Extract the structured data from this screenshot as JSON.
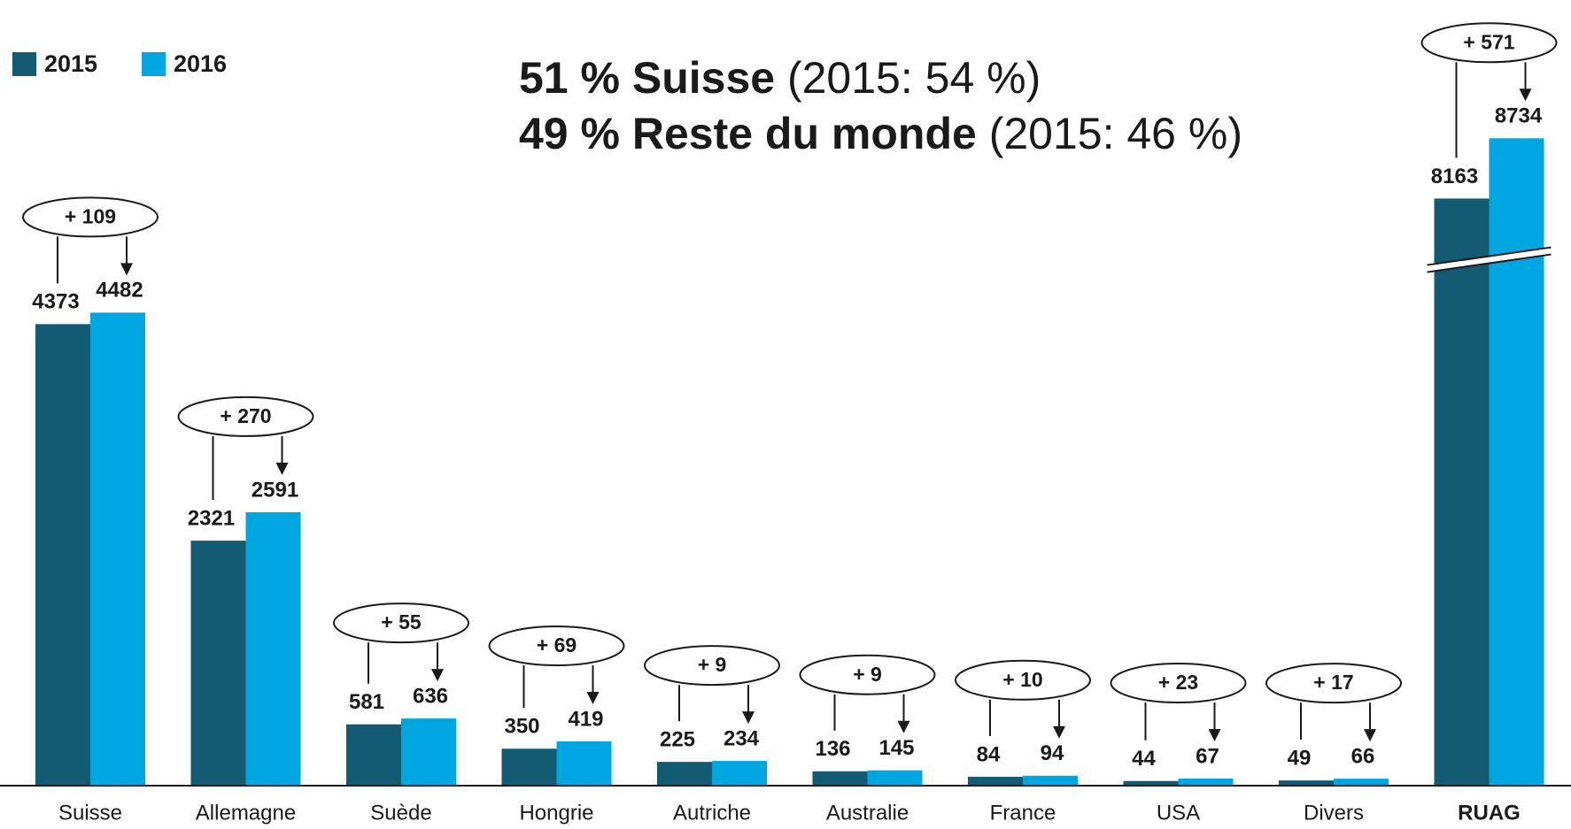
{
  "chart_data": {
    "type": "bar",
    "headline": [
      {
        "bold": "51 % Suisse",
        "rest": "(2015: 54 %)"
      },
      {
        "bold": "49 % Reste du monde",
        "rest": "(2015: 46 %)"
      }
    ],
    "categories": [
      "Suisse",
      "Allemagne",
      "Suède",
      "Hongrie",
      "Autriche",
      "Australie",
      "France",
      "USA",
      "Divers",
      "RUAG"
    ],
    "series": [
      {
        "name": "2015",
        "color": "#135a73",
        "values": [
          4373,
          2321,
          581,
          350,
          225,
          136,
          84,
          44,
          49,
          8163
        ]
      },
      {
        "name": "2016",
        "color": "#00a6e0",
        "values": [
          4482,
          2591,
          636,
          419,
          234,
          145,
          94,
          67,
          66,
          8734
        ]
      }
    ],
    "annotations": [
      "+ 109",
      "+ 270",
      "+ 55",
      "+ 69",
      "+ 9",
      "+ 9",
      "+ 10",
      "+ 23",
      "+ 17",
      "+ 571"
    ],
    "ylim": [
      0,
      9600
    ],
    "axis_break": [
      5000,
      7600
    ]
  }
}
